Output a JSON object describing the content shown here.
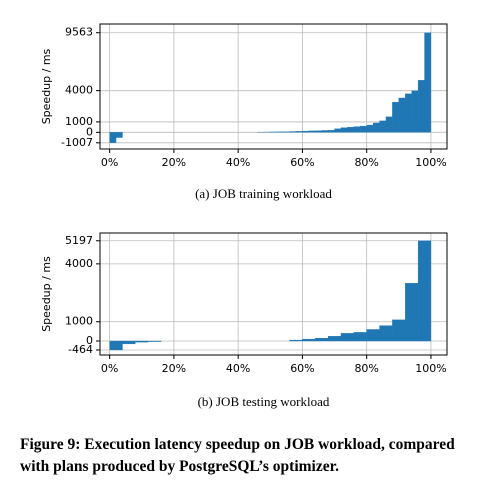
{
  "chart_data": [
    {
      "type": "histogram",
      "title": "(a) JOB training workload",
      "y_label": "Speedup / ms",
      "color": "#1f77b4",
      "grid": true,
      "bins": [
        0,
        2,
        4,
        6,
        8,
        10,
        12,
        14,
        16,
        18,
        20,
        22,
        24,
        26,
        28,
        30,
        32,
        34,
        36,
        38,
        40,
        42,
        44,
        46,
        48,
        50,
        52,
        54,
        56,
        58,
        60,
        62,
        64,
        66,
        68,
        70,
        72,
        74,
        76,
        78,
        80,
        82,
        84,
        86,
        88,
        90,
        92,
        94,
        96,
        98,
        100
      ],
      "values": [
        -1007,
        -500,
        0,
        0,
        0,
        0,
        0,
        0,
        0,
        0,
        0,
        0,
        0,
        0,
        0,
        0,
        0,
        0,
        0,
        0,
        0,
        0,
        0,
        20,
        30,
        40,
        50,
        60,
        80,
        100,
        120,
        140,
        160,
        180,
        200,
        350,
        450,
        500,
        550,
        600,
        700,
        900,
        1100,
        1500,
        2900,
        3300,
        3700,
        4000,
        5000,
        9563
      ],
      "xlim": [
        -3,
        105
      ],
      "ylim": [
        -1600,
        10400
      ],
      "xticks": [
        {
          "value": 0,
          "label": "0%"
        },
        {
          "value": 20,
          "label": "20%"
        },
        {
          "value": 40,
          "label": "40%"
        },
        {
          "value": 60,
          "label": "60%"
        },
        {
          "value": 80,
          "label": "80%"
        },
        {
          "value": 100,
          "label": "100%"
        }
      ],
      "yticks": [
        -1007,
        0,
        1000,
        4000,
        9563
      ]
    },
    {
      "type": "histogram",
      "title": "(b) JOB testing workload",
      "y_label": "Speedup / ms",
      "color": "#1f77b4",
      "grid": true,
      "bins": [
        0,
        4,
        8,
        12,
        16,
        20,
        24,
        28,
        32,
        36,
        40,
        44,
        48,
        52,
        56,
        60,
        64,
        68,
        72,
        76,
        80,
        84,
        88,
        92,
        96,
        100
      ],
      "values": [
        -464,
        -150,
        -60,
        -30,
        0,
        0,
        0,
        0,
        0,
        0,
        0,
        0,
        0,
        0,
        50,
        100,
        150,
        250,
        400,
        450,
        600,
        800,
        1100,
        3000,
        5197
      ],
      "xlim": [
        -3,
        105
      ],
      "ylim": [
        -725,
        5600
      ],
      "xticks": [
        {
          "value": 0,
          "label": "0%"
        },
        {
          "value": 20,
          "label": "20%"
        },
        {
          "value": 40,
          "label": "40%"
        },
        {
          "value": 60,
          "label": "60%"
        },
        {
          "value": 80,
          "label": "80%"
        },
        {
          "value": 100,
          "label": "100%"
        }
      ],
      "yticks": [
        -464,
        0,
        1000,
        4000,
        5197
      ]
    }
  ],
  "caption": "Figure 9: Execution latency speedup on JOB workload, compared with plans produced by PostgreSQL’s optimizer."
}
